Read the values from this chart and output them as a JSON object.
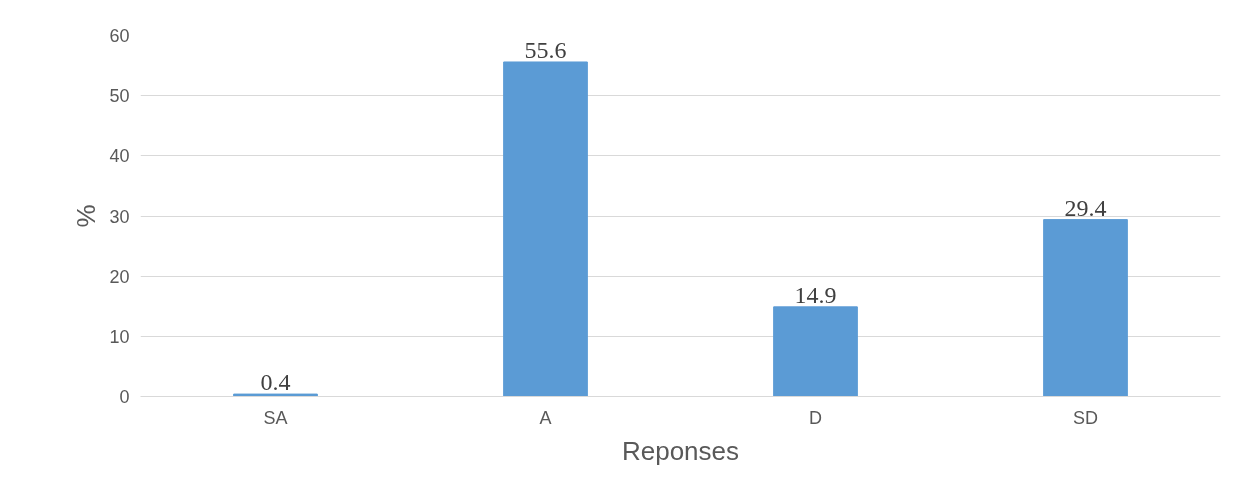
{
  "chart_data": {
    "type": "bar",
    "xlabel": "Reponses",
    "ylabel": "%",
    "categories": [
      "SA",
      "A",
      "D",
      "SD"
    ],
    "values": [
      0.4,
      55.6,
      14.9,
      29.4
    ],
    "color": "#5b9bd5",
    "ylim": [
      0,
      60
    ],
    "yticks": [
      0,
      10,
      20,
      30,
      40,
      50,
      60
    ],
    "grid": "y",
    "data_labels": true
  }
}
